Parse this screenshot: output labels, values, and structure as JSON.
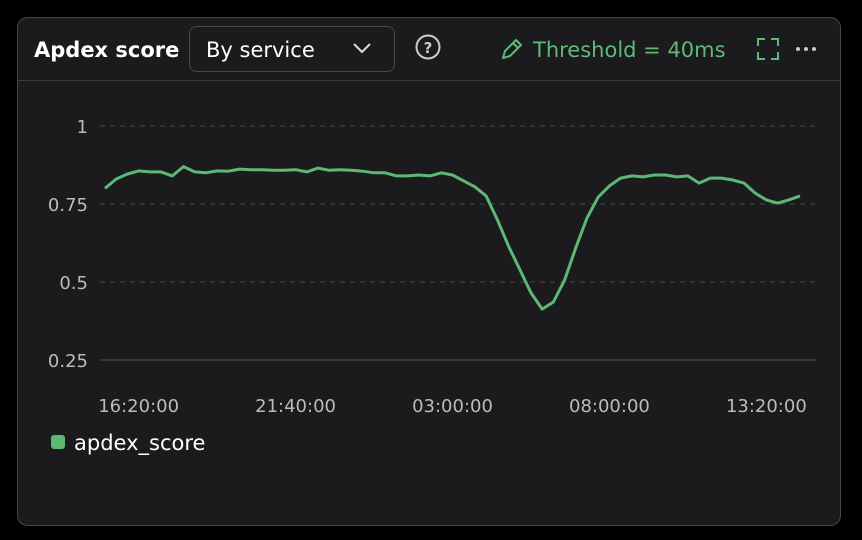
{
  "widget": {
    "title": "Apdex score",
    "dropdown": "By service",
    "threshold": "Threshold = 40ms"
  },
  "chart_data": {
    "type": "line",
    "categories": [
      null,
      null,
      null,
      "16:20:00",
      null,
      null,
      null,
      null,
      null,
      null,
      null,
      null,
      null,
      null,
      null,
      null,
      null,
      "21:40:00",
      null,
      null,
      null,
      null,
      null,
      null,
      null,
      null,
      null,
      null,
      null,
      null,
      null,
      "03:00:00",
      null,
      null,
      null,
      null,
      null,
      null,
      null,
      null,
      null,
      null,
      null,
      null,
      null,
      "08:00:00",
      null,
      null,
      null,
      null,
      null,
      null,
      null,
      null,
      null,
      null,
      null,
      null,
      null,
      "13:20:00",
      null,
      null,
      null
    ],
    "series": [
      {
        "name": "apdex_score",
        "color": "#5cb874",
        "values": [
          0.8,
          0.83,
          0.846,
          0.856,
          0.853,
          0.853,
          0.84,
          0.87,
          0.853,
          0.85,
          0.856,
          0.855,
          0.862,
          0.86,
          0.86,
          0.858,
          0.858,
          0.86,
          0.853,
          0.865,
          0.858,
          0.86,
          0.858,
          0.855,
          0.85,
          0.85,
          0.84,
          0.84,
          0.843,
          0.84,
          0.85,
          0.843,
          0.824,
          0.805,
          0.776,
          0.7,
          0.615,
          0.54,
          0.465,
          0.413,
          0.436,
          0.506,
          0.61,
          0.705,
          0.772,
          0.808,
          0.833,
          0.84,
          0.837,
          0.843,
          0.843,
          0.837,
          0.84,
          0.817,
          0.833,
          0.833,
          0.827,
          0.817,
          0.785,
          0.763,
          0.753,
          0.763,
          0.776
        ]
      }
    ],
    "ylim": [
      0.25,
      1
    ],
    "yticks": [
      0.25,
      0.5,
      0.75,
      1
    ],
    "grid": true
  }
}
